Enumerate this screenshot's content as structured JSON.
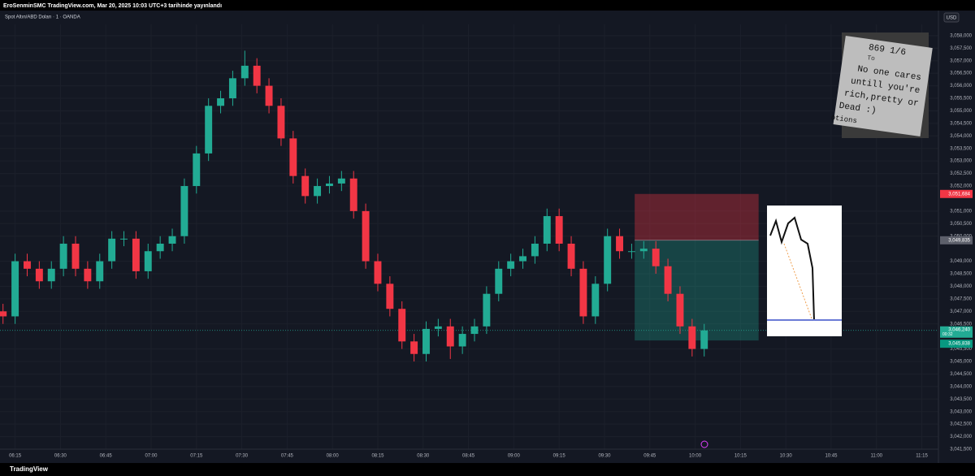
{
  "header": {
    "text": "EroSenminSMC TradingView.com, Mar 20, 2025 10:03 UTC+3 tarihinde yayınlandı"
  },
  "currency_button": "USD",
  "branding": "TradingView",
  "note": {
    "lines": [
      "869 1/6",
      "To",
      "No one cares",
      "untill you're",
      "rich,pretty or",
      "Dead :)",
      "otions"
    ]
  },
  "chart_data": {
    "type": "candlestick",
    "title": "Spot Altın/ABD Doları · 1 · OANDA",
    "up_color": "#22ab94",
    "down_color": "#f23645",
    "x": [
      371,
      375,
      379,
      383,
      387,
      391,
      395,
      399,
      403,
      407,
      411,
      415,
      419,
      423,
      427,
      431,
      435,
      439,
      443,
      447,
      451,
      455,
      459,
      463,
      467,
      471,
      475,
      479,
      483,
      487,
      491,
      495,
      499,
      503,
      507,
      511,
      515,
      519,
      523,
      527,
      531,
      535,
      539,
      543,
      547,
      551,
      555,
      559,
      563,
      567,
      571,
      575,
      579,
      583,
      587,
      591,
      595,
      599,
      603
    ],
    "open": [
      3047.0,
      3046.8,
      3049.0,
      3048.7,
      3048.2,
      3048.7,
      3049.7,
      3048.7,
      3048.2,
      3049.0,
      3049.9,
      3049.9,
      3048.6,
      3049.4,
      3049.7,
      3050.0,
      3052.0,
      3053.3,
      3055.2,
      3055.5,
      3056.3,
      3056.8,
      3056.0,
      3055.2,
      3053.9,
      3052.4,
      3051.6,
      3052.0,
      3052.1,
      3052.3,
      3051.0,
      3049.0,
      3048.1,
      3047.1,
      3045.8,
      3045.3,
      3046.3,
      3046.4,
      3045.6,
      3046.1,
      3046.4,
      3047.7,
      3048.7,
      3049.0,
      3049.2,
      3049.7,
      3050.8,
      3049.7,
      3048.7,
      3046.8,
      3048.1,
      3050.0,
      3049.4,
      3049.4,
      3049.5,
      3048.8,
      3047.7,
      3046.4,
      3045.5
    ],
    "high": [
      3047.3,
      3049.3,
      3049.3,
      3049.0,
      3049.0,
      3050.0,
      3050.0,
      3049.0,
      3049.3,
      3050.2,
      3050.2,
      3050.2,
      3049.7,
      3050.0,
      3050.3,
      3052.3,
      3053.6,
      3055.5,
      3055.8,
      3056.6,
      3057.4,
      3057.1,
      3056.3,
      3055.5,
      3054.2,
      3052.7,
      3052.3,
      3052.4,
      3052.6,
      3052.6,
      3051.3,
      3049.3,
      3048.4,
      3047.4,
      3046.1,
      3046.6,
      3046.7,
      3046.7,
      3046.4,
      3046.7,
      3048.0,
      3049.0,
      3049.3,
      3049.5,
      3050.0,
      3051.1,
      3051.1,
      3050.0,
      3049.0,
      3048.4,
      3050.3,
      3050.3,
      3049.7,
      3049.8,
      3049.8,
      3049.1,
      3048.0,
      3046.7,
      3046.5
    ],
    "low": [
      3046.5,
      3046.5,
      3048.4,
      3047.9,
      3047.9,
      3048.4,
      3048.4,
      3047.9,
      3047.9,
      3048.7,
      3049.6,
      3048.3,
      3048.3,
      3049.1,
      3049.4,
      3049.7,
      3051.7,
      3053.0,
      3054.9,
      3055.2,
      3056.0,
      3055.7,
      3054.9,
      3053.6,
      3052.1,
      3051.3,
      3051.3,
      3051.7,
      3051.8,
      3050.7,
      3048.7,
      3047.8,
      3046.8,
      3045.5,
      3045.0,
      3045.0,
      3046.0,
      3045.1,
      3045.3,
      3045.8,
      3046.1,
      3047.4,
      3048.4,
      3048.7,
      3048.9,
      3049.4,
      3049.4,
      3048.4,
      3046.5,
      3046.5,
      3047.8,
      3049.1,
      3049.1,
      3049.1,
      3048.5,
      3047.4,
      3046.1,
      3045.2,
      3045.2
    ],
    "close": [
      3046.8,
      3049.0,
      3048.7,
      3048.2,
      3048.7,
      3049.7,
      3048.7,
      3048.2,
      3049.0,
      3049.9,
      3049.9,
      3048.6,
      3049.4,
      3049.7,
      3050.0,
      3052.0,
      3053.3,
      3055.2,
      3055.5,
      3056.3,
      3056.8,
      3056.0,
      3055.2,
      3053.9,
      3052.4,
      3051.6,
      3052.0,
      3052.1,
      3052.3,
      3051.0,
      3049.0,
      3048.1,
      3047.1,
      3045.8,
      3045.3,
      3046.3,
      3046.4,
      3045.6,
      3046.1,
      3046.4,
      3047.7,
      3048.7,
      3049.0,
      3049.2,
      3049.7,
      3050.8,
      3049.7,
      3048.7,
      3046.8,
      3048.1,
      3050.0,
      3049.4,
      3049.4,
      3049.5,
      3048.8,
      3047.7,
      3046.4,
      3045.5,
      3046.24
    ],
    "xlim": [
      370,
      680.5
    ],
    "ylim": [
      3041.5,
      3058.45
    ],
    "xticks": [
      {
        "value": 375,
        "label": "06:15"
      },
      {
        "value": 390,
        "label": "06:30"
      },
      {
        "value": 405,
        "label": "06:45"
      },
      {
        "value": 420,
        "label": "07:00"
      },
      {
        "value": 435,
        "label": "07:15"
      },
      {
        "value": 450,
        "label": "07:30"
      },
      {
        "value": 465,
        "label": "07:45"
      },
      {
        "value": 480,
        "label": "08:00"
      },
      {
        "value": 495,
        "label": "08:15"
      },
      {
        "value": 510,
        "label": "08:30"
      },
      {
        "value": 525,
        "label": "08:45"
      },
      {
        "value": 540,
        "label": "09:00"
      },
      {
        "value": 555,
        "label": "09:15"
      },
      {
        "value": 570,
        "label": "09:30"
      },
      {
        "value": 585,
        "label": "09:45"
      },
      {
        "value": 600,
        "label": "10:00"
      },
      {
        "value": 615,
        "label": "10:15"
      },
      {
        "value": 630,
        "label": "10:30"
      },
      {
        "value": 645,
        "label": "10:45"
      },
      {
        "value": 660,
        "label": "11:00"
      },
      {
        "value": 675,
        "label": "11:15"
      }
    ],
    "yticks": [
      {
        "value": 3058,
        "label": "3,058,000"
      },
      {
        "value": 3057.5,
        "label": "3,057,500"
      },
      {
        "value": 3057,
        "label": "3,057,000"
      },
      {
        "value": 3056.5,
        "label": "3,056,500"
      },
      {
        "value": 3056,
        "label": "3,056,000"
      },
      {
        "value": 3055.5,
        "label": "3,055,500"
      },
      {
        "value": 3055,
        "label": "3,055,000"
      },
      {
        "value": 3054.5,
        "label": "3,054,500"
      },
      {
        "value": 3054,
        "label": "3,054,000"
      },
      {
        "value": 3053.5,
        "label": "3,053,500"
      },
      {
        "value": 3053,
        "label": "3,053,000"
      },
      {
        "value": 3052.5,
        "label": "3,052,500"
      },
      {
        "value": 3052,
        "label": "3,052,000"
      },
      {
        "value": 3051,
        "label": "3,051,000"
      },
      {
        "value": 3050.5,
        "label": "3,050,500"
      },
      {
        "value": 3050,
        "label": "3,050,000"
      },
      {
        "value": 3049,
        "label": "3,049,000"
      },
      {
        "value": 3048.5,
        "label": "3,048,500"
      },
      {
        "value": 3048,
        "label": "3,048,000"
      },
      {
        "value": 3047.5,
        "label": "3,047,500"
      },
      {
        "value": 3047,
        "label": "3,047,000"
      },
      {
        "value": 3046.5,
        "label": "3,046,500"
      },
      {
        "value": 3045.5,
        "label": "3,045,500"
      },
      {
        "value": 3045,
        "label": "3,045,000"
      },
      {
        "value": 3044.5,
        "label": "3,044,500"
      },
      {
        "value": 3044,
        "label": "3,044,000"
      },
      {
        "value": 3043.5,
        "label": "3,043,500"
      },
      {
        "value": 3043,
        "label": "3,043,000"
      },
      {
        "value": 3042.5,
        "label": "3,042,500"
      },
      {
        "value": 3042,
        "label": "3,042,000"
      },
      {
        "value": 3041.5,
        "label": "3,041,500"
      }
    ],
    "grid": true,
    "last_price": {
      "value": 3046.24,
      "label": "3,046,240",
      "countdown": "00:32"
    },
    "position": {
      "x_range": [
        580,
        621
      ],
      "stop": {
        "value": 3051.684,
        "label": "3,051,684"
      },
      "entry": {
        "value": 3049.835,
        "label": "3,049,835"
      },
      "target": {
        "value": 3045.838,
        "label": "3,045,838"
      }
    }
  }
}
